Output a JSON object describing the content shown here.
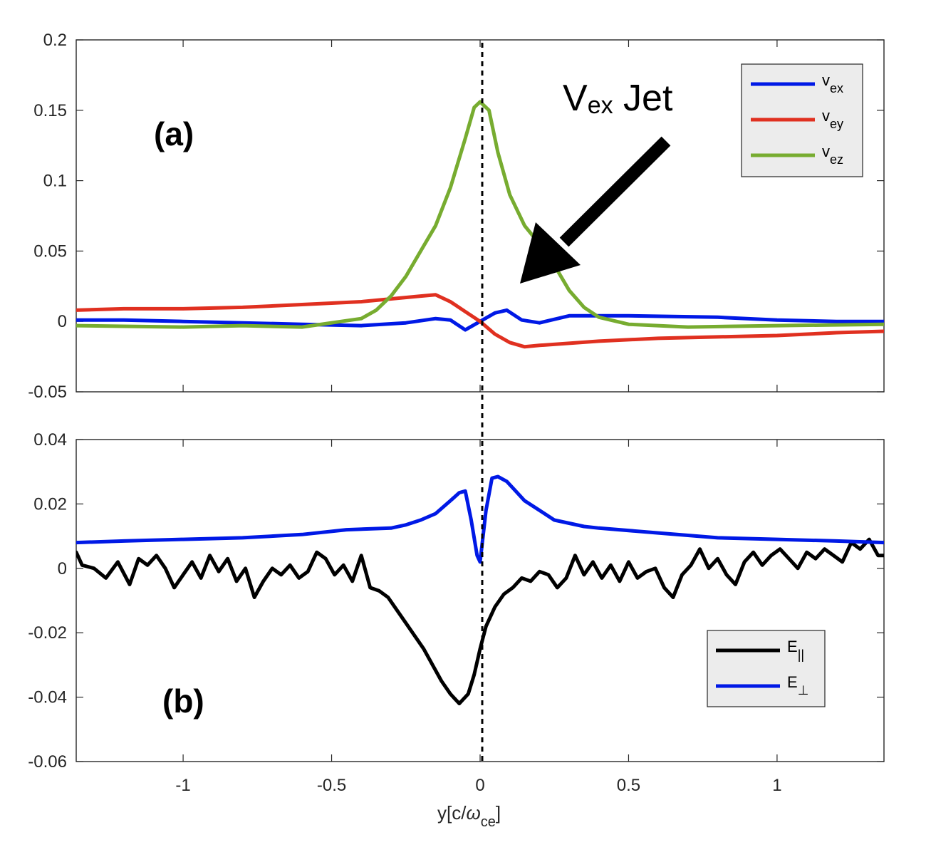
{
  "chart_data": [
    {
      "type": "line",
      "panel_label": "(a)",
      "xlim": [
        -1.36,
        1.36
      ],
      "ylim": [
        -0.05,
        0.2
      ],
      "yticks": [
        -0.05,
        0,
        0.05,
        0.1,
        0.15,
        0.2
      ],
      "ytick_labels": [
        "-0.05",
        "0",
        "0.05",
        "0.1",
        "0.15",
        "0.2"
      ],
      "legend_position": "top-right",
      "annotation": {
        "main": "V",
        "sub": "ex",
        "suffix": " Jet",
        "arrow_to": [
          0.13,
          0.03
        ]
      },
      "series": [
        {
          "name": "v",
          "sub": "ex",
          "color": "#0019e6",
          "x": [
            -1.36,
            -1.2,
            -1.0,
            -0.8,
            -0.6,
            -0.4,
            -0.25,
            -0.15,
            -0.1,
            -0.05,
            0,
            0.05,
            0.09,
            0.14,
            0.2,
            0.3,
            0.5,
            0.8,
            1.0,
            1.2,
            1.36
          ],
          "y": [
            0.001,
            0.001,
            0.0,
            -0.001,
            -0.002,
            -0.003,
            -0.001,
            0.002,
            0.001,
            -0.006,
            0.0,
            0.006,
            0.008,
            0.001,
            -0.001,
            0.004,
            0.004,
            0.003,
            0.001,
            0.0,
            0.0
          ]
        },
        {
          "name": "v",
          "sub": "ey",
          "color": "#e03020",
          "x": [
            -1.36,
            -1.2,
            -1.0,
            -0.8,
            -0.6,
            -0.4,
            -0.2,
            -0.15,
            -0.1,
            -0.05,
            0,
            0.05,
            0.1,
            0.15,
            0.2,
            0.4,
            0.6,
            0.8,
            1.0,
            1.2,
            1.36
          ],
          "y": [
            0.008,
            0.009,
            0.009,
            0.01,
            0.012,
            0.014,
            0.018,
            0.019,
            0.014,
            0.007,
            0.0,
            -0.009,
            -0.015,
            -0.018,
            -0.017,
            -0.014,
            -0.012,
            -0.011,
            -0.01,
            -0.008,
            -0.007
          ]
        },
        {
          "name": "v",
          "sub": "ez",
          "color": "#77ac30",
          "x": [
            -1.36,
            -1.0,
            -0.8,
            -0.6,
            -0.4,
            -0.35,
            -0.3,
            -0.25,
            -0.2,
            -0.15,
            -0.1,
            -0.05,
            -0.02,
            0,
            0.03,
            0.06,
            0.1,
            0.15,
            0.2,
            0.25,
            0.3,
            0.35,
            0.4,
            0.5,
            0.7,
            1.0,
            1.36
          ],
          "y": [
            -0.003,
            -0.004,
            -0.003,
            -0.004,
            0.002,
            0.008,
            0.018,
            0.032,
            0.05,
            0.068,
            0.095,
            0.13,
            0.152,
            0.156,
            0.15,
            0.12,
            0.09,
            0.068,
            0.055,
            0.04,
            0.022,
            0.01,
            0.003,
            -0.002,
            -0.004,
            -0.003,
            -0.002
          ]
        }
      ]
    },
    {
      "type": "line",
      "panel_label": "(b)",
      "xlim": [
        -1.36,
        1.36
      ],
      "ylim": [
        -0.06,
        0.04
      ],
      "xticks": [
        -1,
        -0.5,
        0,
        0.5,
        1
      ],
      "xtick_labels": [
        "-1",
        "-0.5",
        "0",
        "0.5",
        "1"
      ],
      "yticks": [
        -0.06,
        -0.04,
        -0.02,
        0,
        0.02,
        0.04
      ],
      "ytick_labels": [
        "-0.06",
        "-0.04",
        "-0.02",
        "0",
        "0.02",
        "0.04"
      ],
      "xlabel": {
        "prefix": "y[c/",
        "omega": "ω",
        "sub": "ce",
        "suffix": "]"
      },
      "legend_position": "bottom-right",
      "series": [
        {
          "name": "E",
          "sub": "||",
          "color": "#000000",
          "x": [
            -1.36,
            -1.34,
            -1.3,
            -1.26,
            -1.22,
            -1.18,
            -1.15,
            -1.12,
            -1.09,
            -1.06,
            -1.03,
            -1.0,
            -0.97,
            -0.94,
            -0.91,
            -0.88,
            -0.85,
            -0.82,
            -0.79,
            -0.76,
            -0.73,
            -0.7,
            -0.67,
            -0.64,
            -0.61,
            -0.58,
            -0.55,
            -0.52,
            -0.49,
            -0.46,
            -0.43,
            -0.4,
            -0.37,
            -0.34,
            -0.31,
            -0.28,
            -0.25,
            -0.22,
            -0.19,
            -0.16,
            -0.13,
            -0.1,
            -0.07,
            -0.04,
            -0.02,
            0,
            0.02,
            0.05,
            0.08,
            0.11,
            0.14,
            0.17,
            0.2,
            0.23,
            0.26,
            0.29,
            0.32,
            0.35,
            0.38,
            0.41,
            0.44,
            0.47,
            0.5,
            0.53,
            0.56,
            0.59,
            0.62,
            0.65,
            0.68,
            0.71,
            0.74,
            0.77,
            0.8,
            0.83,
            0.86,
            0.89,
            0.92,
            0.95,
            0.98,
            1.01,
            1.04,
            1.07,
            1.1,
            1.13,
            1.16,
            1.19,
            1.22,
            1.25,
            1.28,
            1.31,
            1.34,
            1.36
          ],
          "y": [
            0.005,
            0.001,
            0.0,
            -0.003,
            0.002,
            -0.005,
            0.003,
            0.001,
            0.004,
            0.0,
            -0.006,
            -0.002,
            0.002,
            -0.003,
            0.004,
            -0.001,
            0.003,
            -0.004,
            0.0,
            -0.009,
            -0.004,
            0.0,
            -0.002,
            0.001,
            -0.003,
            -0.001,
            0.005,
            0.003,
            -0.002,
            0.001,
            -0.004,
            0.004,
            -0.006,
            -0.007,
            -0.009,
            -0.013,
            -0.017,
            -0.021,
            -0.025,
            -0.03,
            -0.035,
            -0.039,
            -0.042,
            -0.039,
            -0.033,
            -0.025,
            -0.018,
            -0.012,
            -0.008,
            -0.006,
            -0.003,
            -0.004,
            -0.001,
            -0.002,
            -0.006,
            -0.003,
            0.004,
            -0.002,
            0.002,
            -0.003,
            0.001,
            -0.004,
            0.002,
            -0.003,
            -0.001,
            0.0,
            -0.006,
            -0.009,
            -0.002,
            0.001,
            0.006,
            0.0,
            0.003,
            -0.002,
            -0.005,
            0.002,
            0.005,
            0.001,
            0.004,
            0.006,
            0.003,
            0.0,
            0.005,
            0.003,
            0.006,
            0.004,
            0.002,
            0.008,
            0.006,
            0.009,
            0.004,
            0.004
          ]
        },
        {
          "name": "E",
          "sub": "⊥",
          "color": "#0019e6",
          "x": [
            -1.36,
            -1.2,
            -1.0,
            -0.8,
            -0.6,
            -0.45,
            -0.3,
            -0.25,
            -0.2,
            -0.15,
            -0.1,
            -0.07,
            -0.05,
            -0.03,
            -0.01,
            0,
            0.02,
            0.04,
            0.06,
            0.09,
            0.12,
            0.15,
            0.2,
            0.25,
            0.3,
            0.35,
            0.4,
            0.6,
            0.8,
            1.0,
            1.2,
            1.36
          ],
          "y": [
            0.008,
            0.0085,
            0.009,
            0.0095,
            0.0105,
            0.012,
            0.0125,
            0.0135,
            0.015,
            0.017,
            0.021,
            0.0235,
            0.024,
            0.015,
            0.004,
            0.002,
            0.018,
            0.028,
            0.0285,
            0.027,
            0.024,
            0.021,
            0.018,
            0.015,
            0.014,
            0.013,
            0.0125,
            0.011,
            0.0095,
            0.009,
            0.0085,
            0.008
          ]
        }
      ]
    }
  ]
}
